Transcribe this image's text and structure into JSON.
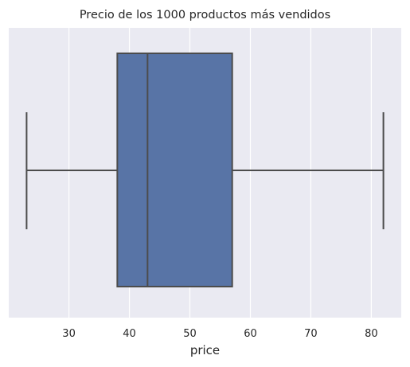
{
  "chart_data": {
    "type": "boxplot",
    "title": "Precio de los 1000 productos más vendidos",
    "xlabel": "price",
    "ylabel": "",
    "xlim": [
      20.05,
      84.95
    ],
    "xticks": [
      30,
      40,
      50,
      60,
      70,
      80
    ],
    "grid": true,
    "orientation": "horizontal",
    "box": {
      "whisker_low": 23,
      "q1": 38,
      "median": 43,
      "q3": 57,
      "whisker_high": 82
    },
    "colors": {
      "plot_background": "#eaeaf2",
      "grid": "#ffffff",
      "box_fill": "#5874a6",
      "line": "#4c4c4c",
      "text": "#262626"
    }
  }
}
